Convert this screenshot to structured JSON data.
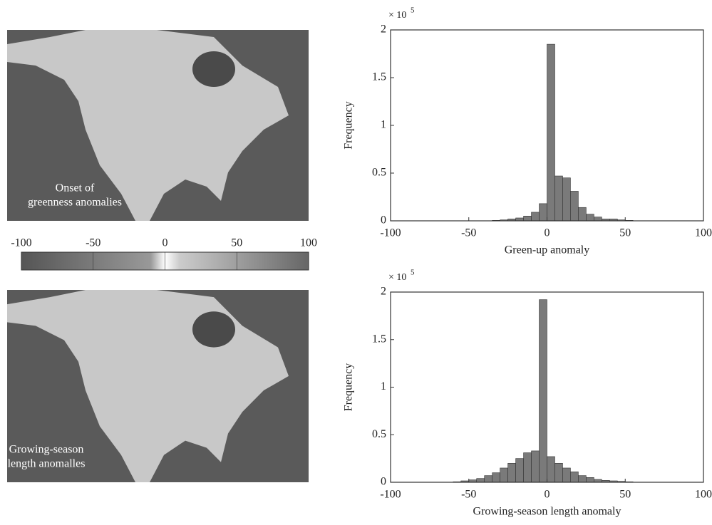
{
  "chart_data": [
    {
      "type": "map",
      "annotation": [
        "Onset of",
        "greenness anomalies"
      ]
    },
    {
      "type": "colorbar",
      "xlim": [
        -100,
        100
      ],
      "xticks": [
        -100,
        -50,
        0,
        50,
        100
      ]
    },
    {
      "type": "map",
      "annotation": [
        "Growing-season",
        "length anomalles"
      ]
    },
    {
      "type": "histogram",
      "xlabel": "Green-up anomaly",
      "ylabel": "Frequency",
      "yscale_base": "× 10",
      "yscale_exponent": "5",
      "color": "#7a7a7a",
      "bins": [
        -100,
        -95,
        -90,
        -85,
        -80,
        -75,
        -70,
        -65,
        -60,
        -55,
        -50,
        -45,
        -40,
        -35,
        -30,
        -25,
        -20,
        -15,
        -10,
        -5,
        0,
        5,
        10,
        15,
        20,
        25,
        30,
        35,
        40,
        45,
        50,
        55,
        60,
        65,
        70,
        75,
        80,
        85,
        90,
        95,
        100
      ],
      "values": [
        0,
        0,
        0,
        0,
        0,
        0,
        0,
        0,
        0,
        0,
        0,
        0,
        0,
        0.005,
        0.01,
        0.02,
        0.03,
        0.05,
        0.09,
        0.18,
        1.85,
        0.47,
        0.45,
        0.31,
        0.14,
        0.07,
        0.04,
        0.02,
        0.02,
        0.01,
        0.005,
        0,
        0,
        0,
        0,
        0,
        0,
        0,
        0,
        0
      ],
      "xlim": [
        -100,
        100
      ],
      "xticks": [
        -100,
        -50,
        0,
        50,
        100
      ],
      "ylim": [
        0,
        2
      ],
      "yticks": [
        0,
        0.5,
        1,
        1.5,
        2
      ]
    },
    {
      "type": "histogram",
      "xlabel": "Growing-season length anomaly",
      "ylabel": "Frequency",
      "yscale_base": "× 10",
      "yscale_exponent": "5",
      "color": "#7a7a7a",
      "bins": [
        -100,
        -95,
        -90,
        -85,
        -80,
        -75,
        -70,
        -65,
        -60,
        -55,
        -50,
        -45,
        -40,
        -35,
        -30,
        -25,
        -20,
        -15,
        -10,
        -5,
        0,
        5,
        10,
        15,
        20,
        25,
        30,
        35,
        40,
        45,
        50,
        55,
        60,
        65,
        70,
        75,
        80,
        85,
        90,
        95,
        100
      ],
      "values": [
        0,
        0,
        0,
        0,
        0,
        0,
        0,
        0,
        0.005,
        0.015,
        0.025,
        0.04,
        0.07,
        0.1,
        0.15,
        0.2,
        0.25,
        0.31,
        0.33,
        1.92,
        0.27,
        0.2,
        0.15,
        0.11,
        0.07,
        0.05,
        0.03,
        0.02,
        0.015,
        0.01,
        0.005,
        0,
        0,
        0,
        0,
        0,
        0,
        0,
        0,
        0
      ],
      "xlim": [
        -100,
        100
      ],
      "xticks": [
        -100,
        -50,
        0,
        50,
        100
      ],
      "ylim": [
        0,
        2
      ],
      "yticks": [
        0,
        0.5,
        1,
        1.5,
        2
      ]
    }
  ]
}
